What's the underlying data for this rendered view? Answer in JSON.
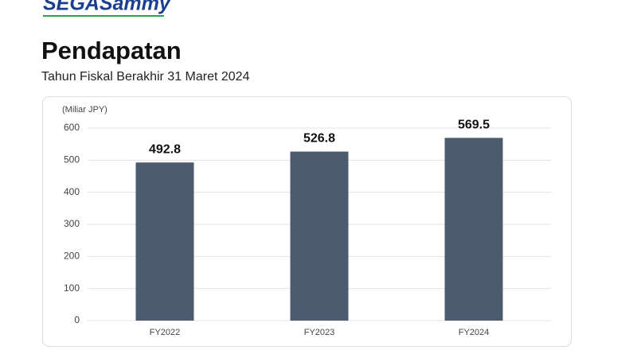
{
  "logo": "SEGASammy",
  "chart_data": {
    "type": "bar",
    "title": "Pendapatan",
    "subtitle": "Tahun Fiskal Berakhir 31 Maret 2024",
    "y_label": "(Miliar JPY)",
    "categories": [
      "FY2022",
      "FY2023",
      "FY2024"
    ],
    "values": [
      492.8,
      526.8,
      569.5
    ],
    "color": "#4d5b6e",
    "ylim": [
      0,
      600
    ],
    "yticks": [
      0,
      100,
      200,
      300,
      400,
      500,
      600
    ],
    "grid": true
  }
}
